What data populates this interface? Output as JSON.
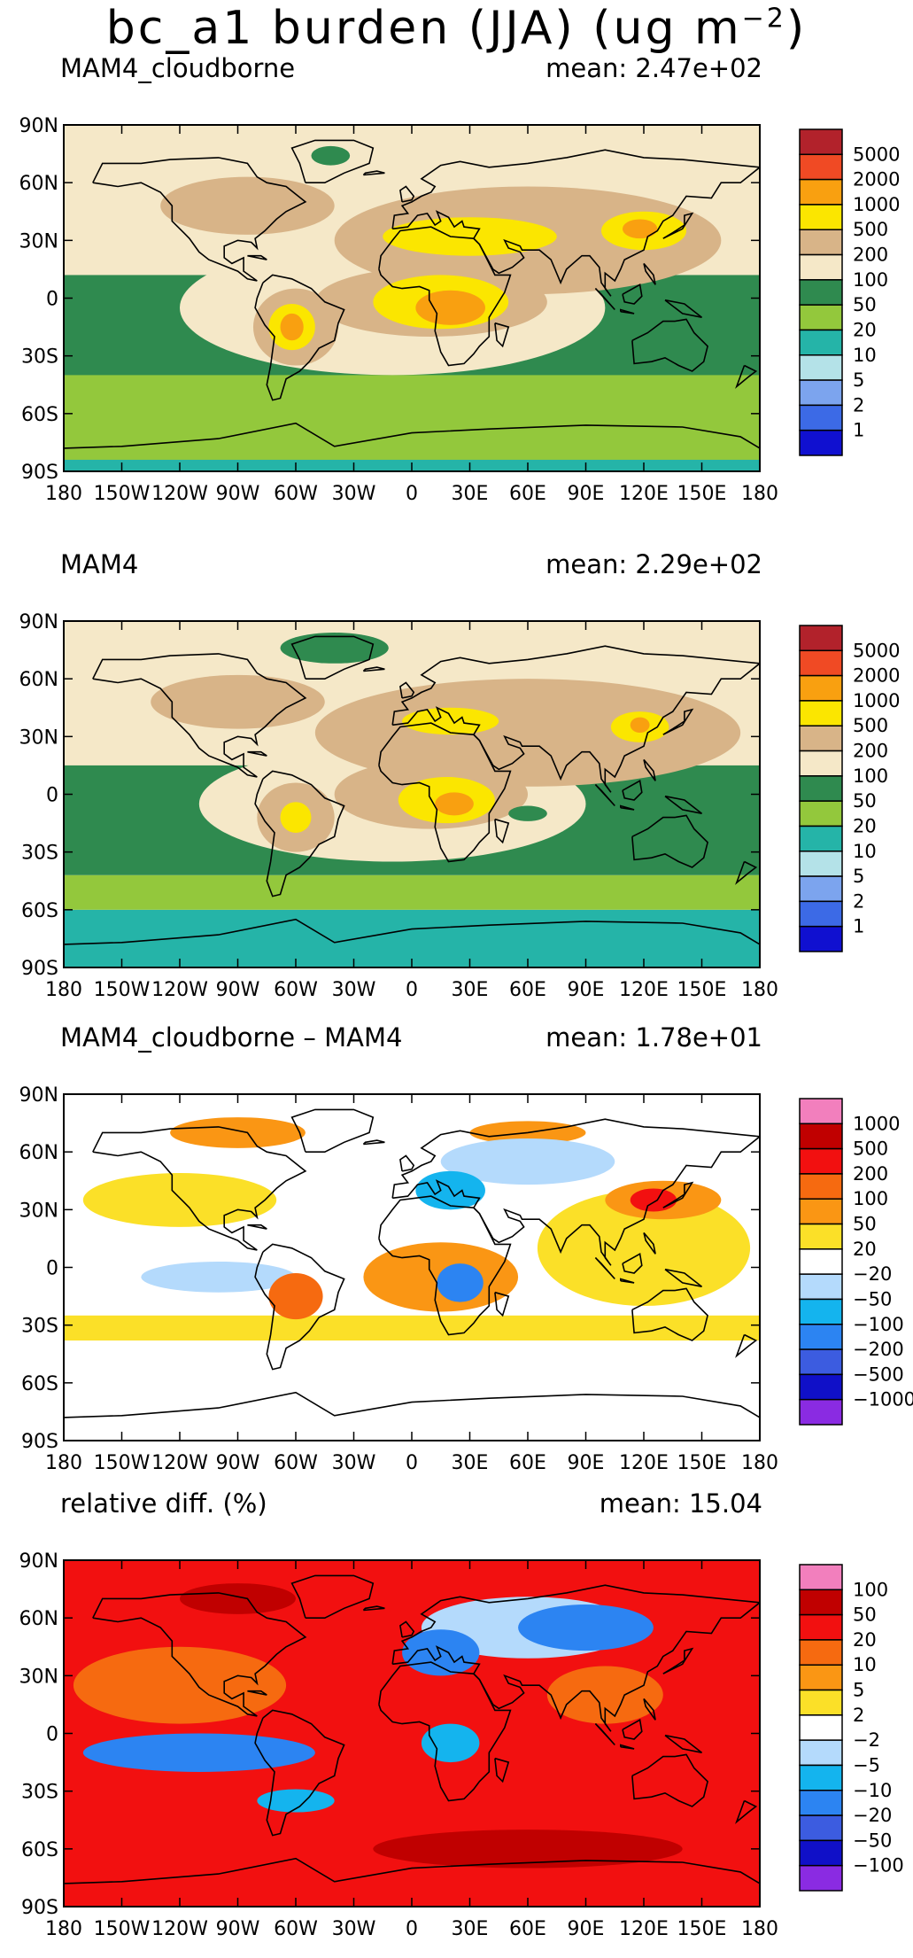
{
  "figure_title": {
    "main": "bc_a1 burden (JJA) (ug m",
    "exp": "−2",
    "close": ")"
  },
  "lon_ticks": [
    "180",
    "150W",
    "120W",
    "90W",
    "60W",
    "30W",
    "0",
    "30E",
    "60E",
    "90E",
    "120E",
    "150E",
    "180"
  ],
  "lat_ticks": [
    "90N",
    "60N",
    "30N",
    "0",
    "30S",
    "60S",
    "90S"
  ],
  "panels": [
    {
      "title": "MAM4_cloudborne",
      "mean": "mean: 2.47e+02",
      "colorbar_labels": [
        "5000",
        "2000",
        "1000",
        "500",
        "200",
        "100",
        "50",
        "20",
        "10",
        "5",
        "2",
        "1"
      ],
      "colorbar_colors": [
        "#b2222b",
        "#f04a24",
        "#f9a010",
        "#fbe600",
        "#d8b488",
        "#f5e8c8",
        "#2f8a4f",
        "#93c83c",
        "#25b4a8",
        "#b4e2e8",
        "#7ca4ee",
        "#3c6ae6",
        "#1010d0"
      ],
      "regions": [
        {
          "level": "20",
          "color": "#93c83c",
          "shape": "rect",
          "lat": [
            -90,
            -38
          ]
        },
        {
          "level": "10",
          "color": "#25b4a8",
          "shape": "rect",
          "lat": [
            -90,
            -84
          ]
        },
        {
          "level": "50",
          "color": "#2f8a4f",
          "shape": "rect",
          "lat": [
            -40,
            15
          ]
        },
        {
          "level": "100",
          "color": "#f5e8c8",
          "shape": "rect",
          "lat": [
            12,
            90
          ]
        },
        {
          "level": "100",
          "color": "#f5e8c8",
          "shape": "ell",
          "lon": -10,
          "lat": -5,
          "rx": 110,
          "ry": 35
        },
        {
          "level": "200",
          "color": "#d8b488",
          "shape": "ell",
          "lon": 60,
          "lat": 30,
          "rx": 100,
          "ry": 28
        },
        {
          "level": "200",
          "color": "#d8b488",
          "shape": "ell",
          "lon": -85,
          "lat": 48,
          "rx": 45,
          "ry": 15
        },
        {
          "level": "200",
          "color": "#d8b488",
          "shape": "ell",
          "lon": 10,
          "lat": -2,
          "rx": 60,
          "ry": 18
        },
        {
          "level": "200",
          "color": "#d8b488",
          "shape": "ell",
          "lon": -60,
          "lat": -15,
          "rx": 22,
          "ry": 20
        },
        {
          "level": "500",
          "color": "#fbe600",
          "shape": "ell",
          "lon": 15,
          "lat": -2,
          "rx": 35,
          "ry": 14
        },
        {
          "level": "500",
          "color": "#fbe600",
          "shape": "ell",
          "lon": 30,
          "lat": 32,
          "rx": 45,
          "ry": 10
        },
        {
          "level": "500",
          "color": "#fbe600",
          "shape": "ell",
          "lon": 120,
          "lat": 35,
          "rx": 22,
          "ry": 10
        },
        {
          "level": "500",
          "color": "#fbe600",
          "shape": "ell",
          "lon": -62,
          "lat": -15,
          "rx": 12,
          "ry": 12
        },
        {
          "level": "1000",
          "color": "#f9a010",
          "shape": "ell",
          "lon": 20,
          "lat": -5,
          "rx": 18,
          "ry": 9
        },
        {
          "level": "1000",
          "color": "#f9a010",
          "shape": "ell",
          "lon": 118,
          "lat": 36,
          "rx": 9,
          "ry": 5
        },
        {
          "level": "1000",
          "color": "#f9a010",
          "shape": "ell",
          "lon": -62,
          "lat": -15,
          "rx": 6,
          "ry": 7
        },
        {
          "level": "50",
          "color": "#2f8a4f",
          "shape": "ell",
          "lon": -42,
          "lat": 74,
          "rx": 10,
          "ry": 5
        }
      ]
    },
    {
      "title": "MAM4",
      "mean": "mean: 2.29e+02",
      "colorbar_labels": [
        "5000",
        "2000",
        "1000",
        "500",
        "200",
        "100",
        "50",
        "20",
        "10",
        "5",
        "2",
        "1"
      ],
      "colorbar_colors": [
        "#b2222b",
        "#f04a24",
        "#f9a010",
        "#fbe600",
        "#d8b488",
        "#f5e8c8",
        "#2f8a4f",
        "#93c83c",
        "#25b4a8",
        "#b4e2e8",
        "#7ca4ee",
        "#3c6ae6",
        "#1010d0"
      ],
      "regions": [
        {
          "level": "10",
          "color": "#25b4a8",
          "shape": "rect",
          "lat": [
            -90,
            -60
          ]
        },
        {
          "level": "20",
          "color": "#93c83c",
          "shape": "rect",
          "lat": [
            -60,
            -42
          ]
        },
        {
          "level": "50",
          "color": "#2f8a4f",
          "shape": "rect",
          "lat": [
            -42,
            20
          ]
        },
        {
          "level": "100",
          "color": "#f5e8c8",
          "shape": "rect",
          "lat": [
            15,
            90
          ]
        },
        {
          "level": "50",
          "color": "#2f8a4f",
          "shape": "ell",
          "lon": -40,
          "lat": 76,
          "rx": 28,
          "ry": 8
        },
        {
          "level": "100",
          "color": "#f5e8c8",
          "shape": "ell",
          "lon": -10,
          "lat": -5,
          "rx": 100,
          "ry": 30
        },
        {
          "level": "200",
          "color": "#d8b488",
          "shape": "ell",
          "lon": 60,
          "lat": 32,
          "rx": 110,
          "ry": 28
        },
        {
          "level": "200",
          "color": "#d8b488",
          "shape": "ell",
          "lon": -90,
          "lat": 48,
          "rx": 45,
          "ry": 14
        },
        {
          "level": "200",
          "color": "#d8b488",
          "shape": "ell",
          "lon": 10,
          "lat": 0,
          "rx": 50,
          "ry": 18
        },
        {
          "level": "200",
          "color": "#d8b488",
          "shape": "ell",
          "lon": -60,
          "lat": -12,
          "rx": 20,
          "ry": 18
        },
        {
          "level": "500",
          "color": "#fbe600",
          "shape": "ell",
          "lon": 18,
          "lat": -3,
          "rx": 25,
          "ry": 12
        },
        {
          "level": "500",
          "color": "#fbe600",
          "shape": "ell",
          "lon": 20,
          "lat": 38,
          "rx": 25,
          "ry": 7
        },
        {
          "level": "500",
          "color": "#fbe600",
          "shape": "ell",
          "lon": 118,
          "lat": 35,
          "rx": 15,
          "ry": 8
        },
        {
          "level": "500",
          "color": "#fbe600",
          "shape": "ell",
          "lon": -60,
          "lat": -12,
          "rx": 8,
          "ry": 8
        },
        {
          "level": "1000",
          "color": "#f9a010",
          "shape": "ell",
          "lon": 22,
          "lat": -5,
          "rx": 10,
          "ry": 6
        },
        {
          "level": "1000",
          "color": "#f9a010",
          "shape": "ell",
          "lon": 118,
          "lat": 36,
          "rx": 5,
          "ry": 4
        },
        {
          "level": "50",
          "color": "#2f8a4f",
          "shape": "ell",
          "lon": 60,
          "lat": -10,
          "rx": 10,
          "ry": 4
        }
      ]
    },
    {
      "title": "MAM4_cloudborne – MAM4",
      "mean": "mean: 1.78e+01",
      "colorbar_labels": [
        "1000",
        "500",
        "200",
        "100",
        "50",
        "20",
        "−20",
        "−50",
        "−100",
        "−200",
        "−500",
        "−1000"
      ],
      "colorbar_colors": [
        "#f27fbd",
        "#c00000",
        "#f21010",
        "#f66a10",
        "#fa9614",
        "#fbe028",
        "#ffffff",
        "#b4dafc",
        "#14b4ee",
        "#2c84f2",
        "#3c5ce0",
        "#1010c8",
        "#8a2be2"
      ],
      "regions": [
        {
          "level": "20",
          "color": "#fbe028",
          "shape": "rect",
          "lat": [
            -38,
            -25
          ]
        },
        {
          "level": "20",
          "color": "#fbe028",
          "shape": "ell",
          "lon": -120,
          "lat": 35,
          "rx": 50,
          "ry": 14
        },
        {
          "level": "50",
          "color": "#fa9614",
          "shape": "ell",
          "lon": -90,
          "lat": 70,
          "rx": 35,
          "ry": 8
        },
        {
          "level": "50",
          "color": "#fa9614",
          "shape": "ell",
          "lon": 60,
          "lat": 70,
          "rx": 30,
          "ry": 6
        },
        {
          "level": "20",
          "color": "#fbe028",
          "shape": "ell",
          "lon": 120,
          "lat": 10,
          "rx": 55,
          "ry": 30
        },
        {
          "level": "50",
          "color": "#fa9614",
          "shape": "ell",
          "lon": 130,
          "lat": 35,
          "rx": 30,
          "ry": 10
        },
        {
          "level": "200",
          "color": "#f21010",
          "shape": "ell",
          "lon": 125,
          "lat": 35,
          "rx": 12,
          "ry": 6
        },
        {
          "level": "-50",
          "color": "#b4dafc",
          "shape": "ell",
          "lon": 60,
          "lat": 55,
          "rx": 45,
          "ry": 12
        },
        {
          "level": "-100",
          "color": "#14b4ee",
          "shape": "ell",
          "lon": 20,
          "lat": 40,
          "rx": 18,
          "ry": 10
        },
        {
          "level": "-50",
          "color": "#b4dafc",
          "shape": "ell",
          "lon": -100,
          "lat": -5,
          "rx": 40,
          "ry": 8
        },
        {
          "level": "50",
          "color": "#fa9614",
          "shape": "ell",
          "lon": 15,
          "lat": -5,
          "rx": 40,
          "ry": 18
        },
        {
          "level": "-200",
          "color": "#2c84f2",
          "shape": "ell",
          "lon": 25,
          "lat": -8,
          "rx": 12,
          "ry": 10
        },
        {
          "level": "100",
          "color": "#f66a10",
          "shape": "ell",
          "lon": -60,
          "lat": -15,
          "rx": 14,
          "ry": 12
        }
      ]
    },
    {
      "title": "relative diff. (%)",
      "mean": "mean: 15.04",
      "colorbar_labels": [
        "100",
        "50",
        "20",
        "10",
        "5",
        "2",
        "−2",
        "−5",
        "−10",
        "−20",
        "−50",
        "−100"
      ],
      "colorbar_colors": [
        "#f27fbd",
        "#c00000",
        "#f21010",
        "#f66a10",
        "#fa9614",
        "#fbe028",
        "#ffffff",
        "#b4dafc",
        "#14b4ee",
        "#2c84f2",
        "#3c5ce0",
        "#1010c8",
        "#8a2be2"
      ],
      "regions": [
        {
          "level": "20",
          "color": "#f21010",
          "shape": "rect",
          "lat": [
            -90,
            90
          ]
        },
        {
          "level": "10",
          "color": "#f66a10",
          "shape": "ell",
          "lon": -120,
          "lat": 25,
          "rx": 55,
          "ry": 20
        },
        {
          "level": "50",
          "color": "#c00000",
          "shape": "ell",
          "lon": 60,
          "lat": -60,
          "rx": 80,
          "ry": 10
        },
        {
          "level": "50",
          "color": "#c00000",
          "shape": "ell",
          "lon": -90,
          "lat": 70,
          "rx": 30,
          "ry": 8
        },
        {
          "level": "-5",
          "color": "#b4dafc",
          "shape": "ell",
          "lon": 60,
          "lat": 55,
          "rx": 55,
          "ry": 16
        },
        {
          "level": "-20",
          "color": "#2c84f2",
          "shape": "ell",
          "lon": 90,
          "lat": 55,
          "rx": 35,
          "ry": 12
        },
        {
          "level": "-20",
          "color": "#2c84f2",
          "shape": "ell",
          "lon": 15,
          "lat": 42,
          "rx": 20,
          "ry": 12
        },
        {
          "level": "-20",
          "color": "#2c84f2",
          "shape": "ell",
          "lon": -110,
          "lat": -10,
          "rx": 60,
          "ry": 10
        },
        {
          "level": "-10",
          "color": "#14b4ee",
          "shape": "ell",
          "lon": -60,
          "lat": -35,
          "rx": 20,
          "ry": 6
        },
        {
          "level": "-10",
          "color": "#14b4ee",
          "shape": "ell",
          "lon": 20,
          "lat": -5,
          "rx": 15,
          "ry": 10
        },
        {
          "level": "10",
          "color": "#f66a10",
          "shape": "ell",
          "lon": 100,
          "lat": 20,
          "rx": 30,
          "ry": 15
        }
      ]
    }
  ]
}
